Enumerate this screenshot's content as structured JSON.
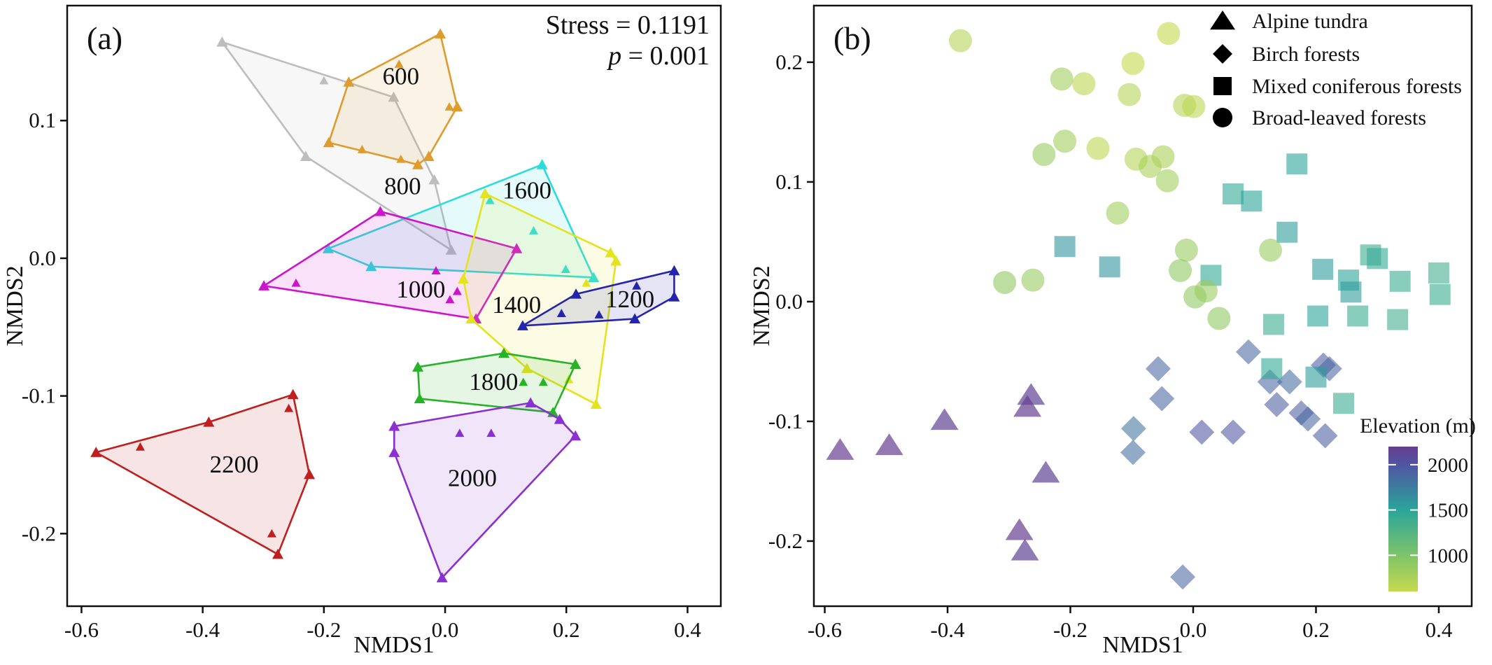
{
  "figure": {
    "background": "#ffffff",
    "text_color": "#111111"
  },
  "chart_data": [
    {
      "panel": "a",
      "type": "scatter",
      "subtype": "nmds-ordination-with-convex-hulls",
      "tag": "(a)",
      "stress_label": "Stress = 0.1191",
      "p_symbol": "p",
      "p_rest": " = 0.001",
      "xlabel": "NMDS1",
      "ylabel": "NMDS2",
      "xlim": [
        -0.6236,
        0.4549
      ],
      "ylim": [
        -0.2527,
        0.1835
      ],
      "x_tick_values": [
        -0.6,
        -0.4,
        -0.2,
        0.0,
        0.2,
        0.4
      ],
      "x_tick_labels": [
        "-0.6",
        "-0.4",
        "-0.2",
        "0.0",
        "0.2",
        "0.4"
      ],
      "y_tick_values": [
        0.1,
        0.0,
        -0.1,
        -0.2
      ],
      "y_tick_labels": [
        "0.1",
        "0.0",
        "-0.1",
        "-0.2"
      ],
      "grid": false,
      "groups": [
        {
          "label": "800",
          "color": "#bdbdbd",
          "label_pos": [
            -0.07,
            0.052
          ],
          "hull": [
            [
              -0.368,
              0.157
            ],
            [
              -0.085,
              0.117
            ],
            [
              -0.018,
              0.057
            ],
            [
              0.01,
              0.006
            ],
            [
              -0.23,
              0.074
            ]
          ],
          "extra_points": [
            [
              -0.2,
              0.129
            ]
          ]
        },
        {
          "label": "600",
          "color": "#e09b2d",
          "label_pos": [
            -0.073,
            0.132
          ],
          "hull": [
            [
              -0.008,
              0.163
            ],
            [
              0.02,
              0.11
            ],
            [
              -0.027,
              0.074
            ],
            [
              -0.045,
              0.068
            ],
            [
              -0.192,
              0.084
            ],
            [
              -0.159,
              0.128
            ]
          ],
          "extra_points": [
            [
              -0.076,
              0.141
            ],
            [
              -0.137,
              0.079
            ],
            [
              -0.073,
              0.072
            ],
            [
              0.007,
              0.11
            ]
          ]
        },
        {
          "label": "1600",
          "color": "#2adcdc",
          "label_pos": [
            0.135,
            0.049
          ],
          "hull": [
            [
              0.16,
              0.068
            ],
            [
              0.245,
              -0.014
            ],
            [
              -0.122,
              -0.006
            ],
            [
              -0.193,
              0.007
            ]
          ],
          "extra_points": [
            [
              0.074,
              0.042
            ],
            [
              0.146,
              0.02
            ],
            [
              0.199,
              -0.008
            ]
          ]
        },
        {
          "label": "1000",
          "color": "#cc14cc",
          "label_pos": [
            -0.04,
            -0.023
          ],
          "hull": [
            [
              -0.107,
              0.034
            ],
            [
              0.118,
              0.007
            ],
            [
              0.051,
              -0.044
            ],
            [
              -0.299,
              -0.02
            ]
          ],
          "extra_points": [
            [
              -0.246,
              -0.018
            ],
            [
              -0.015,
              -0.009
            ],
            [
              0.02,
              -0.024
            ],
            [
              0.008,
              -0.03
            ]
          ]
        },
        {
          "label": "1400",
          "color": "#e3e31f",
          "label_pos": [
            0.118,
            -0.034
          ],
          "hull": [
            [
              0.066,
              0.047
            ],
            [
              0.273,
              0.004
            ],
            [
              0.282,
              -0.002
            ],
            [
              0.249,
              -0.106
            ],
            [
              0.135,
              -0.08
            ],
            [
              0.043,
              -0.044
            ],
            [
              0.03,
              -0.015
            ]
          ],
          "extra_points": [
            [
              0.233,
              -0.018
            ],
            [
              0.204,
              -0.088
            ]
          ]
        },
        {
          "label": "1200",
          "color": "#2424ad",
          "label_pos": [
            0.305,
            -0.03
          ],
          "hull": [
            [
              0.128,
              -0.049
            ],
            [
              0.216,
              -0.026
            ],
            [
              0.378,
              -0.009
            ],
            [
              0.378,
              -0.028
            ],
            [
              0.313,
              -0.044
            ]
          ],
          "extra_points": [
            [
              0.192,
              -0.04
            ],
            [
              0.254,
              -0.041
            ],
            [
              0.316,
              -0.02
            ]
          ]
        },
        {
          "label": "1800",
          "color": "#28b228",
          "label_pos": [
            0.08,
            -0.09
          ],
          "hull": [
            [
              -0.045,
              -0.079
            ],
            [
              0.097,
              -0.069
            ],
            [
              0.215,
              -0.077
            ],
            [
              0.178,
              -0.112
            ],
            [
              -0.042,
              -0.102
            ]
          ],
          "extra_points": [
            [
              0.129,
              -0.09
            ],
            [
              0.162,
              -0.09
            ]
          ]
        },
        {
          "label": "2000",
          "color": "#8a30d1",
          "label_pos": [
            0.045,
            -0.16
          ],
          "hull": [
            [
              -0.084,
              -0.122
            ],
            [
              0.141,
              -0.105
            ],
            [
              0.189,
              -0.117
            ],
            [
              0.215,
              -0.129
            ],
            [
              -0.005,
              -0.232
            ],
            [
              -0.084,
              -0.141
            ]
          ],
          "extra_points": [
            [
              0.024,
              -0.127
            ],
            [
              0.076,
              -0.127
            ]
          ]
        },
        {
          "label": "2200",
          "color": "#bf1f1f",
          "label_pos": [
            -0.348,
            -0.15
          ],
          "hull": [
            [
              -0.576,
              -0.141
            ],
            [
              -0.39,
              -0.119
            ],
            [
              -0.251,
              -0.099
            ],
            [
              -0.224,
              -0.157
            ],
            [
              -0.276,
              -0.215
            ]
          ],
          "extra_points": [
            [
              -0.503,
              -0.137
            ],
            [
              -0.258,
              -0.109
            ],
            [
              -0.286,
              -0.2
            ]
          ]
        }
      ]
    },
    {
      "panel": "b",
      "type": "scatter",
      "subtype": "nmds-ordination-by-vegetation-type",
      "tag": "(b)",
      "xlabel": "NMDS1",
      "ylabel": "NMDS2",
      "xlim": [
        -0.6177,
        0.4536
      ],
      "ylim": [
        -0.2544,
        0.2473
      ],
      "x_tick_values": [
        -0.6,
        -0.4,
        -0.2,
        0.0,
        0.2,
        0.4
      ],
      "x_tick_labels": [
        "-0.6",
        "-0.4",
        "-0.2",
        "0.0",
        "0.2",
        "0.4"
      ],
      "y_tick_values": [
        0.2,
        0.1,
        0.0,
        -0.1,
        -0.2
      ],
      "y_tick_labels": [
        "0.2",
        "0.1",
        "0.0",
        "-0.1",
        "-0.2"
      ],
      "grid": false,
      "legend": [
        {
          "shape": "triangle",
          "label": "Alpine tundra"
        },
        {
          "shape": "diamond",
          "label": "Birch forests"
        },
        {
          "shape": "square",
          "label": "Mixed coniferous forests"
        },
        {
          "shape": "circle",
          "label": "Broad-leaved forests"
        }
      ],
      "colorbar": {
        "title": "Elevation (m)",
        "tick_values": [
          2000,
          1500,
          1000
        ],
        "tick_labels": [
          "2000",
          "1500",
          "1000"
        ],
        "min": 600,
        "max": 2200,
        "stops": [
          {
            "e": 2200,
            "c": "#653e90"
          },
          {
            "e": 2000,
            "c": "#4f55a2"
          },
          {
            "e": 1500,
            "c": "#2aa59a"
          },
          {
            "e": 1000,
            "c": "#7ec46a"
          },
          {
            "e": 600,
            "c": "#c6d94f"
          }
        ]
      },
      "series": [
        {
          "name": "Alpine tundra",
          "shape": "triangle",
          "opacity": 0.7,
          "points": [
            [
              -0.575,
              -0.124,
              2200
            ],
            [
              -0.495,
              -0.12,
              2200
            ],
            [
              -0.405,
              -0.099,
              2150
            ],
            [
              -0.264,
              -0.078,
              2150
            ],
            [
              -0.27,
              -0.088,
              2200
            ],
            [
              -0.24,
              -0.143,
              2150
            ],
            [
              -0.283,
              -0.191,
              2200
            ],
            [
              -0.274,
              -0.208,
              2150
            ]
          ]
        },
        {
          "name": "Birch forests",
          "shape": "diamond",
          "opacity": 0.58,
          "points": [
            [
              -0.057,
              -0.056,
              1900
            ],
            [
              -0.051,
              -0.081,
              1900
            ],
            [
              -0.097,
              -0.106,
              1800
            ],
            [
              -0.098,
              -0.126,
              1850
            ],
            [
              0.09,
              -0.042,
              1900
            ],
            [
              0.125,
              -0.067,
              1900
            ],
            [
              0.157,
              -0.067,
              1850
            ],
            [
              0.212,
              -0.053,
              1950
            ],
            [
              0.222,
              -0.056,
              1900
            ],
            [
              0.136,
              -0.086,
              1950
            ],
            [
              0.176,
              -0.093,
              1950
            ],
            [
              0.187,
              -0.098,
              1900
            ],
            [
              0.215,
              -0.112,
              1950
            ],
            [
              0.014,
              -0.109,
              2000
            ],
            [
              0.065,
              -0.109,
              2000
            ],
            [
              -0.017,
              -0.23,
              1900
            ]
          ]
        },
        {
          "name": "Mixed coniferous forests",
          "shape": "square",
          "opacity": 0.6,
          "points": [
            [
              0.169,
              0.115,
              1500
            ],
            [
              0.065,
              0.09,
              1450
            ],
            [
              0.095,
              0.084,
              1500
            ],
            [
              0.153,
              0.058,
              1550
            ],
            [
              0.289,
              0.039,
              1400
            ],
            [
              0.3,
              0.036,
              1450
            ],
            [
              0.211,
              0.027,
              1550
            ],
            [
              0.253,
              0.018,
              1500
            ],
            [
              0.257,
              0.008,
              1550
            ],
            [
              0.337,
              0.017,
              1400
            ],
            [
              0.4,
              0.024,
              1350
            ],
            [
              0.402,
              0.006,
              1400
            ],
            [
              0.029,
              0.022,
              1450
            ],
            [
              0.131,
              -0.019,
              1400
            ],
            [
              0.203,
              -0.012,
              1500
            ],
            [
              0.268,
              -0.012,
              1400
            ],
            [
              0.333,
              -0.015,
              1350
            ],
            [
              0.128,
              -0.056,
              1450
            ],
            [
              0.2,
              -0.063,
              1550
            ],
            [
              0.245,
              -0.085,
              1400
            ],
            [
              -0.209,
              0.046,
              1600
            ],
            [
              -0.136,
              0.029,
              1600
            ]
          ]
        },
        {
          "name": "Broad-leaved forests",
          "shape": "circle",
          "opacity": 0.6,
          "points": [
            [
              -0.379,
              0.218,
              700
            ],
            [
              -0.04,
              0.224,
              600
            ],
            [
              -0.214,
              0.186,
              800
            ],
            [
              -0.178,
              0.182,
              650
            ],
            [
              -0.098,
              0.199,
              600
            ],
            [
              -0.104,
              0.173,
              700
            ],
            [
              -0.209,
              0.134,
              800
            ],
            [
              -0.243,
              0.123,
              850
            ],
            [
              -0.155,
              0.128,
              650
            ],
            [
              -0.093,
              0.119,
              700
            ],
            [
              -0.07,
              0.113,
              750
            ],
            [
              -0.123,
              0.074,
              800
            ],
            [
              -0.014,
              0.164,
              700
            ],
            [
              0.001,
              0.163,
              650
            ],
            [
              -0.049,
              0.121,
              750
            ],
            [
              -0.042,
              0.101,
              800
            ],
            [
              -0.011,
              0.043,
              850
            ],
            [
              -0.021,
              0.026,
              900
            ],
            [
              0.126,
              0.043,
              850
            ],
            [
              0.003,
              0.004,
              900
            ],
            [
              0.021,
              0.009,
              850
            ],
            [
              0.042,
              -0.014,
              900
            ],
            [
              -0.307,
              0.016,
              900
            ],
            [
              -0.261,
              0.018,
              850
            ]
          ]
        }
      ]
    }
  ]
}
